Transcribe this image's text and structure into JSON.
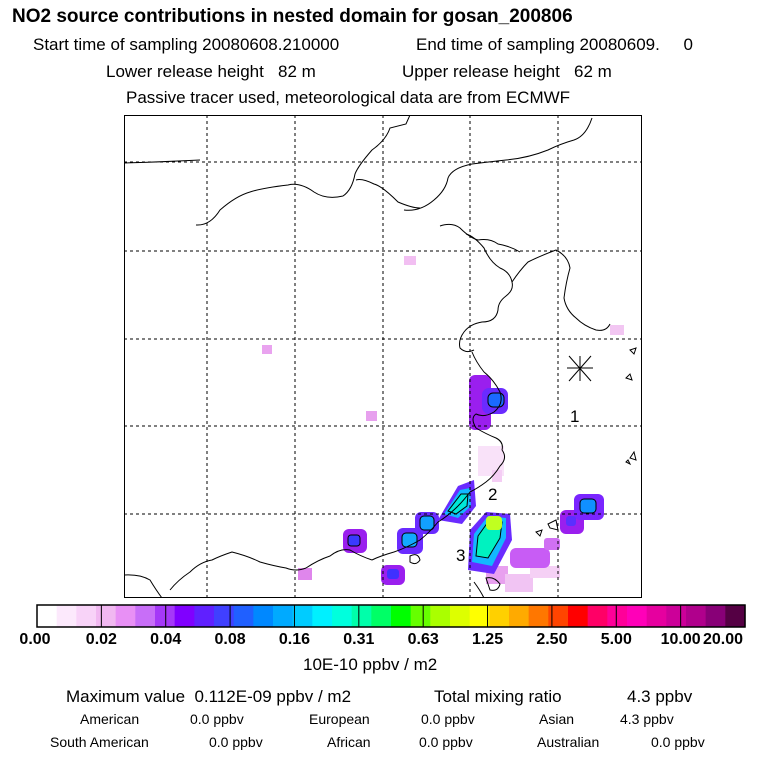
{
  "header": {
    "title": "NO2 source contributions in nested domain for gosan_200806",
    "start_time": "Start time of sampling 20080608.210000",
    "end_time": "End time of sampling 20080609.     0",
    "lower_release": "Lower release height   82 m",
    "upper_release": "Upper release height   62 m",
    "tracer_note": "Passive tracer used, meteorological data are from ECMWF"
  },
  "map": {
    "source_labels": [
      "1",
      "2",
      "3"
    ],
    "receptor_marker": "receptor-star-icon"
  },
  "colorbar": {
    "tick_labels": [
      "0.00",
      "0.02",
      "0.04",
      "0.08",
      "0.16",
      "0.31",
      "0.63",
      "1.25",
      "2.50",
      "5.00",
      "10.00",
      "20.00"
    ],
    "colors": [
      "#ffffff",
      "#fce9fc",
      "#f8d3f8",
      "#f1b8f1",
      "#e890f5",
      "#c86ef8",
      "#a538f8",
      "#8000ff",
      "#6020ff",
      "#4040ff",
      "#2060ff",
      "#0088ff",
      "#00aaff",
      "#00ccff",
      "#00f0ff",
      "#00ffdd",
      "#00ffaa",
      "#00ff66",
      "#00ff00",
      "#66ff00",
      "#aaff00",
      "#ddff00",
      "#ffff00",
      "#ffd000",
      "#ffaa00",
      "#ff7700",
      "#ff4400",
      "#ff0000",
      "#ff0066",
      "#ff0099",
      "#ff00b8",
      "#e6009f",
      "#cc0099",
      "#b0008c",
      "#880077",
      "#550044"
    ],
    "unit": "10E-10 ppbv / m2"
  },
  "summary": {
    "max_value": "Maximum value  0.112E-09 ppbv / m2",
    "total_mixing": "Total mixing ratio",
    "total_mixing_value": "4.3 ppbv",
    "sources": [
      {
        "name": "American",
        "value": "0.0 ppbv"
      },
      {
        "name": "European",
        "value": "0.0 ppbv"
      },
      {
        "name": "Asian",
        "value": "4.3 ppbv"
      },
      {
        "name": "South American",
        "value": "0.0 ppbv"
      },
      {
        "name": "African",
        "value": "0.0 ppbv"
      },
      {
        "name": "Australian",
        "value": "0.0 ppbv"
      }
    ]
  }
}
